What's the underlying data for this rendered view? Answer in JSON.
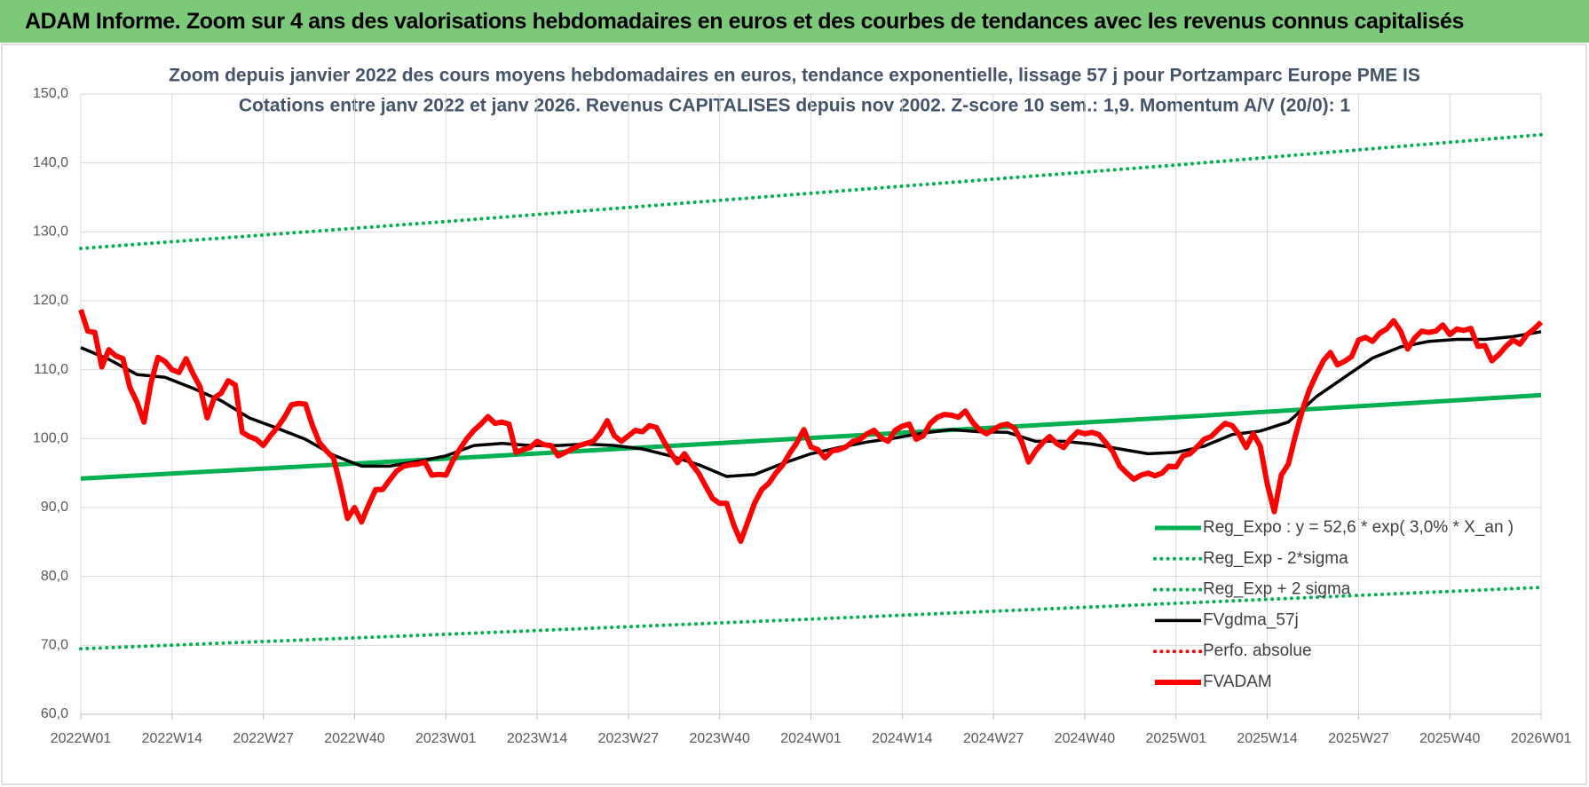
{
  "header": {
    "title": "ADAM Informe. Zoom sur 4 ans des valorisations hebdomadaires en euros et des courbes de tendances avec les revenus connus capitalisés"
  },
  "chart_data": {
    "type": "line",
    "title": "Zoom depuis janvier 2022 des cours moyens hebdomadaires en euros, tendance exponentielle, lissage 57 j pour Portzamparc Europe PME IS",
    "subtitle": "Cotations entre janv 2022 et janv 2026. Revenus CAPITALISES depuis nov 2002. Z-score 10 sem.: 1,9. Momentum A/V (20/0): 1",
    "xlim": [
      0,
      208
    ],
    "xticks": [
      {
        "value": 0,
        "label": "2022W01"
      },
      {
        "value": 13,
        "label": "2022W14"
      },
      {
        "value": 26,
        "label": "2022W27"
      },
      {
        "value": 39,
        "label": "2022W40"
      },
      {
        "value": 52,
        "label": "2023W01"
      },
      {
        "value": 65,
        "label": "2023W14"
      },
      {
        "value": 78,
        "label": "2023W27"
      },
      {
        "value": 91,
        "label": "2023W40"
      },
      {
        "value": 104,
        "label": "2024W01"
      },
      {
        "value": 117,
        "label": "2024W14"
      },
      {
        "value": 130,
        "label": "2024W27"
      },
      {
        "value": 143,
        "label": "2024W40"
      },
      {
        "value": 156,
        "label": "2025W01"
      },
      {
        "value": 169,
        "label": "2025W14"
      },
      {
        "value": 182,
        "label": "2025W27"
      },
      {
        "value": 195,
        "label": "2025W40"
      },
      {
        "value": 208,
        "label": "2026W01"
      }
    ],
    "ylim": [
      60,
      150
    ],
    "yticks": [
      {
        "value": 60,
        "label": "60,0"
      },
      {
        "value": 70,
        "label": "70,0"
      },
      {
        "value": 80,
        "label": "80,0"
      },
      {
        "value": 90,
        "label": "90,0"
      },
      {
        "value": 100,
        "label": "100,0"
      },
      {
        "value": 110,
        "label": "110,0"
      },
      {
        "value": 120,
        "label": "120,0"
      },
      {
        "value": 130,
        "label": "130,0"
      },
      {
        "value": 140,
        "label": "140,0"
      },
      {
        "value": 150,
        "label": "150,0"
      }
    ],
    "grid": true,
    "legend": "lower-right",
    "series": [
      {
        "name": "Reg_Expo : y = 52,6 * exp( 3,0% *  X_an )",
        "color": "#00b050",
        "style": "solid",
        "width": 5,
        "x": [
          0,
          52,
          104,
          156,
          208
        ],
        "values": [
          94.2,
          97.1,
          100.1,
          103.1,
          106.3
        ]
      },
      {
        "name": "Reg_Exp - 2*sigma",
        "color": "#00b050",
        "style": "dotted",
        "width": 4,
        "x": [
          0,
          52,
          104,
          156,
          208
        ],
        "values": [
          69.5,
          71.6,
          73.8,
          76.1,
          78.4
        ]
      },
      {
        "name": "Reg_Exp + 2 sigma",
        "color": "#00b050",
        "style": "dotted",
        "width": 4,
        "x": [
          0,
          52,
          104,
          156,
          208
        ],
        "values": [
          127.6,
          131.5,
          135.6,
          139.7,
          144.1
        ]
      },
      {
        "name": "FVgdma_57j",
        "color": "#000000",
        "style": "solid",
        "width": 3.5,
        "x": [
          0,
          4,
          8,
          12,
          16,
          20,
          24,
          28,
          32,
          36,
          40,
          44,
          48,
          52,
          56,
          60,
          64,
          68,
          72,
          76,
          80,
          84,
          88,
          92,
          96,
          100,
          104,
          108,
          112,
          116,
          120,
          124,
          128,
          132,
          136,
          140,
          144,
          148,
          152,
          156,
          160,
          164,
          168,
          172,
          176,
          180,
          184,
          188,
          192,
          196,
          200,
          204,
          208
        ],
        "values": [
          113.2,
          111.5,
          109.3,
          108.9,
          107.3,
          105.5,
          103.0,
          101.5,
          99.9,
          97.6,
          96.0,
          96.0,
          96.7,
          97.5,
          99.0,
          99.3,
          99.0,
          99.0,
          99.2,
          99.0,
          98.5,
          97.5,
          96.2,
          94.5,
          94.8,
          96.4,
          97.8,
          98.7,
          99.5,
          100.1,
          100.8,
          101.3,
          101.0,
          100.9,
          99.6,
          99.6,
          99.2,
          98.5,
          97.8,
          98.0,
          98.9,
          100.6,
          101.1,
          102.4,
          106.1,
          108.9,
          111.7,
          113.3,
          114.1,
          114.4,
          114.4,
          114.8,
          115.5
        ]
      },
      {
        "name": "Perfo. absolue",
        "color": "#ff0000",
        "style": "dotted",
        "width": 4,
        "x": [],
        "values": []
      },
      {
        "name": "FVADAM",
        "color": "#ff0000",
        "style": "solid",
        "width": 6,
        "x": [
          0,
          1,
          2,
          3,
          4,
          5,
          6,
          7,
          8,
          9,
          10,
          11,
          12,
          13,
          14,
          15,
          16,
          17,
          18,
          19,
          20,
          21,
          22,
          23,
          24,
          25,
          26,
          27,
          28,
          29,
          30,
          31,
          32,
          33,
          34,
          35,
          36,
          37,
          38,
          39,
          40,
          41,
          42,
          43,
          44,
          45,
          46,
          47,
          48,
          49,
          50,
          51,
          52,
          53,
          54,
          55,
          56,
          57,
          58,
          59,
          60,
          61,
          62,
          63,
          64,
          65,
          66,
          67,
          68,
          69,
          70,
          71,
          72,
          73,
          74,
          75,
          76,
          77,
          78,
          79,
          80,
          81,
          82,
          83,
          84,
          85,
          86,
          87,
          88,
          89,
          90,
          91,
          92,
          93,
          94,
          95,
          96,
          97,
          98,
          99,
          100,
          101,
          102,
          103,
          104,
          105,
          106,
          107,
          108,
          109,
          110,
          111,
          112,
          113,
          114,
          115,
          116,
          117,
          118,
          119,
          120,
          121,
          122,
          123,
          124,
          125,
          126,
          127,
          128,
          129,
          130,
          131,
          132,
          133,
          134,
          135,
          136,
          137,
          138,
          139,
          140,
          141,
          142,
          143,
          144,
          145,
          146,
          147,
          148,
          149,
          150,
          151,
          152,
          153,
          154,
          155,
          156,
          157,
          158,
          159,
          160,
          161,
          162,
          163,
          164,
          165,
          166,
          167,
          168,
          169,
          170,
          171,
          172,
          173,
          174,
          175,
          176,
          177,
          178,
          179,
          180,
          181,
          182,
          183,
          184,
          185,
          186,
          187,
          188,
          189,
          190,
          191,
          192,
          193,
          194,
          195,
          196,
          197,
          198,
          199,
          200,
          201,
          202,
          203,
          204,
          205,
          206,
          207,
          208
        ],
        "values": [
          118.7,
          115.6,
          115.4,
          110.4,
          112.9,
          112.0,
          111.6,
          107.4,
          105.3,
          102.4,
          108.1,
          111.8,
          111.2,
          110.0,
          109.6,
          111.6,
          109.4,
          107.5,
          103.0,
          105.9,
          106.6,
          108.4,
          107.8,
          100.9,
          100.3,
          99.9,
          99.0,
          100.4,
          101.6,
          103.1,
          104.9,
          105.1,
          105.0,
          101.9,
          99.4,
          98.2,
          97.2,
          93.1,
          88.4,
          90.0,
          87.9,
          90.4,
          92.6,
          92.6,
          94.0,
          95.3,
          96.0,
          96.2,
          96.3,
          96.6,
          94.7,
          94.8,
          94.7,
          96.8,
          98.5,
          100.0,
          101.2,
          102.1,
          103.2,
          102.2,
          102.4,
          102.1,
          98.0,
          98.4,
          98.7,
          99.6,
          99.1,
          99.0,
          97.5,
          98.0,
          98.5,
          99.0,
          99.3,
          99.6,
          100.8,
          102.6,
          100.4,
          99.6,
          100.4,
          101.2,
          101.0,
          101.9,
          101.6,
          99.7,
          98.0,
          96.5,
          97.8,
          96.3,
          95.0,
          93.1,
          91.3,
          90.6,
          90.6,
          87.5,
          85.1,
          87.9,
          90.7,
          92.6,
          93.5,
          95.0,
          96.2,
          97.9,
          99.4,
          101.3,
          98.8,
          98.4,
          97.2,
          98.2,
          98.4,
          98.8,
          99.6,
          99.9,
          100.7,
          101.2,
          100.1,
          99.6,
          101.2,
          101.8,
          102.1,
          99.9,
          100.4,
          102.2,
          103.1,
          103.5,
          103.4,
          103.1,
          104.0,
          102.4,
          101.3,
          100.7,
          101.3,
          101.9,
          102.1,
          101.5,
          99.6,
          96.6,
          98.2,
          99.4,
          100.3,
          99.3,
          98.7,
          100.0,
          101.0,
          100.7,
          100.9,
          100.6,
          99.4,
          98.1,
          96.0,
          95.0,
          94.1,
          94.7,
          95.0,
          94.6,
          95.0,
          96.0,
          95.9,
          97.5,
          97.8,
          98.8,
          99.9,
          100.3,
          101.3,
          102.2,
          101.9,
          100.6,
          98.7,
          100.7,
          98.9,
          93.4,
          89.4,
          94.7,
          96.3,
          100.4,
          104.1,
          107.1,
          109.3,
          111.3,
          112.5,
          110.7,
          111.2,
          111.9,
          114.3,
          114.7,
          114.1,
          115.3,
          115.9,
          117.1,
          115.6,
          113.0,
          114.6,
          115.6,
          115.4,
          115.6,
          116.5,
          115.1,
          115.9,
          115.7,
          116.0,
          113.4,
          113.5,
          111.3,
          112.2,
          113.4,
          114.3,
          113.7,
          115.1,
          115.9,
          116.9
        ]
      }
    ]
  }
}
